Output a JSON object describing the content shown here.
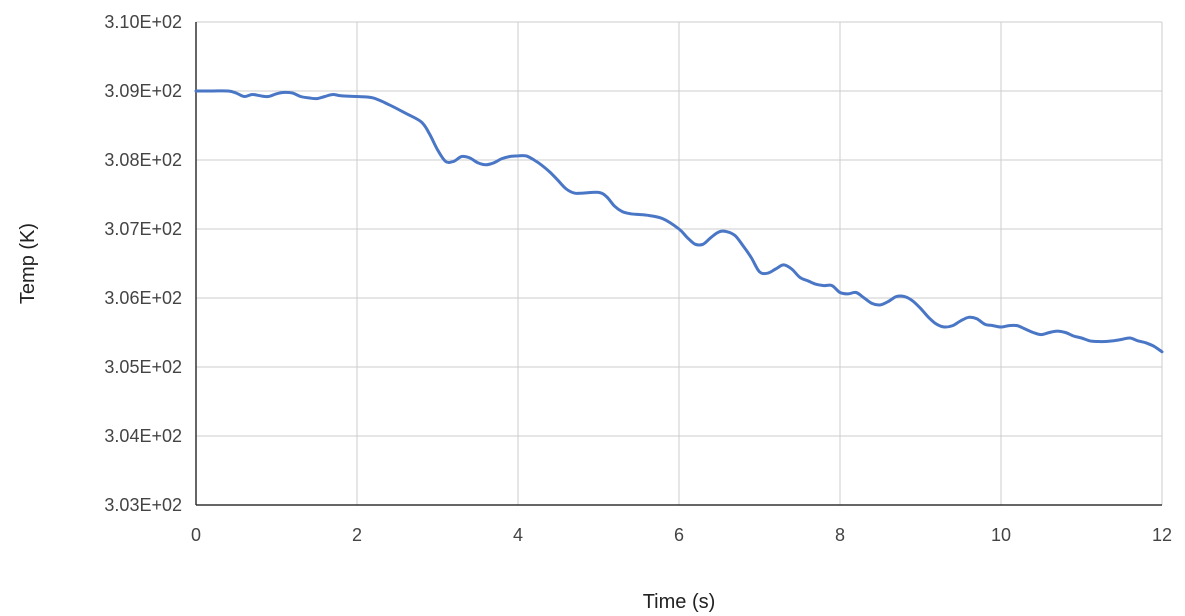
{
  "chart_data": {
    "type": "line",
    "title": "",
    "xlabel": "Time (s)",
    "ylabel": "Temp (K)",
    "xlim": [
      0,
      12
    ],
    "ylim": [
      303,
      310
    ],
    "x_ticks": [
      0,
      2,
      4,
      6,
      8,
      10,
      12
    ],
    "x_tick_labels": [
      "0",
      "2",
      "4",
      "6",
      "8",
      "10",
      "12"
    ],
    "y_ticks": [
      303,
      304,
      305,
      306,
      307,
      308,
      309,
      310
    ],
    "y_tick_labels": [
      "3.03E+02",
      "3.04E+02",
      "3.05E+02",
      "3.06E+02",
      "3.07E+02",
      "3.08E+02",
      "3.09E+02",
      "3.10E+02"
    ],
    "grid": true,
    "legend": "none",
    "colors": {
      "series": "#4a76c6",
      "grid": "#cccccc",
      "axis": "#333333"
    },
    "series": [
      {
        "x": [
          0,
          0.2,
          0.4,
          0.5,
          0.6,
          0.7,
          0.8,
          0.9,
          1.0,
          1.1,
          1.2,
          1.3,
          1.4,
          1.5,
          1.6,
          1.7,
          1.8,
          2.0,
          2.2,
          2.4,
          2.6,
          2.8,
          2.9,
          3.0,
          3.1,
          3.2,
          3.3,
          3.4,
          3.5,
          3.6,
          3.7,
          3.8,
          3.9,
          4.0,
          4.1,
          4.2,
          4.3,
          4.4,
          4.5,
          4.6,
          4.7,
          4.8,
          5.0,
          5.1,
          5.2,
          5.3,
          5.4,
          5.6,
          5.8,
          6.0,
          6.1,
          6.2,
          6.3,
          6.4,
          6.5,
          6.6,
          6.7,
          6.8,
          6.9,
          7.0,
          7.1,
          7.2,
          7.3,
          7.4,
          7.5,
          7.6,
          7.7,
          7.8,
          7.9,
          8.0,
          8.1,
          8.2,
          8.3,
          8.4,
          8.5,
          8.6,
          8.7,
          8.8,
          8.9,
          9.0,
          9.1,
          9.2,
          9.3,
          9.4,
          9.5,
          9.6,
          9.7,
          9.8,
          9.9,
          10.0,
          10.1,
          10.2,
          10.3,
          10.4,
          10.5,
          10.6,
          10.7,
          10.8,
          10.9,
          11.0,
          11.1,
          11.2,
          11.3,
          11.4,
          11.5,
          11.6,
          11.7,
          11.8,
          11.9,
          12.0
        ],
        "values": [
          309.0,
          309.0,
          309.0,
          308.97,
          308.92,
          308.95,
          308.93,
          308.92,
          308.96,
          308.98,
          308.97,
          308.92,
          308.9,
          308.89,
          308.92,
          308.95,
          308.93,
          308.92,
          308.9,
          308.8,
          308.68,
          308.55,
          308.38,
          308.15,
          307.98,
          307.98,
          308.05,
          308.03,
          307.96,
          307.93,
          307.96,
          308.02,
          308.05,
          308.06,
          308.06,
          308.0,
          307.92,
          307.82,
          307.7,
          307.58,
          307.52,
          307.52,
          307.53,
          307.47,
          307.33,
          307.25,
          307.22,
          307.2,
          307.15,
          307.0,
          306.88,
          306.78,
          306.78,
          306.88,
          306.96,
          306.96,
          306.9,
          306.75,
          306.58,
          306.38,
          306.36,
          306.42,
          306.48,
          306.42,
          306.3,
          306.25,
          306.2,
          306.18,
          306.18,
          306.08,
          306.06,
          306.08,
          306.0,
          305.92,
          305.9,
          305.95,
          306.02,
          306.02,
          305.96,
          305.85,
          305.72,
          305.62,
          305.58,
          305.6,
          305.67,
          305.72,
          305.7,
          305.62,
          305.6,
          305.58,
          305.6,
          305.6,
          305.55,
          305.5,
          305.47,
          305.5,
          305.52,
          305.5,
          305.45,
          305.42,
          305.38,
          305.37,
          305.37,
          305.38,
          305.4,
          305.42,
          305.38,
          305.35,
          305.3,
          305.22
        ]
      }
    ]
  }
}
